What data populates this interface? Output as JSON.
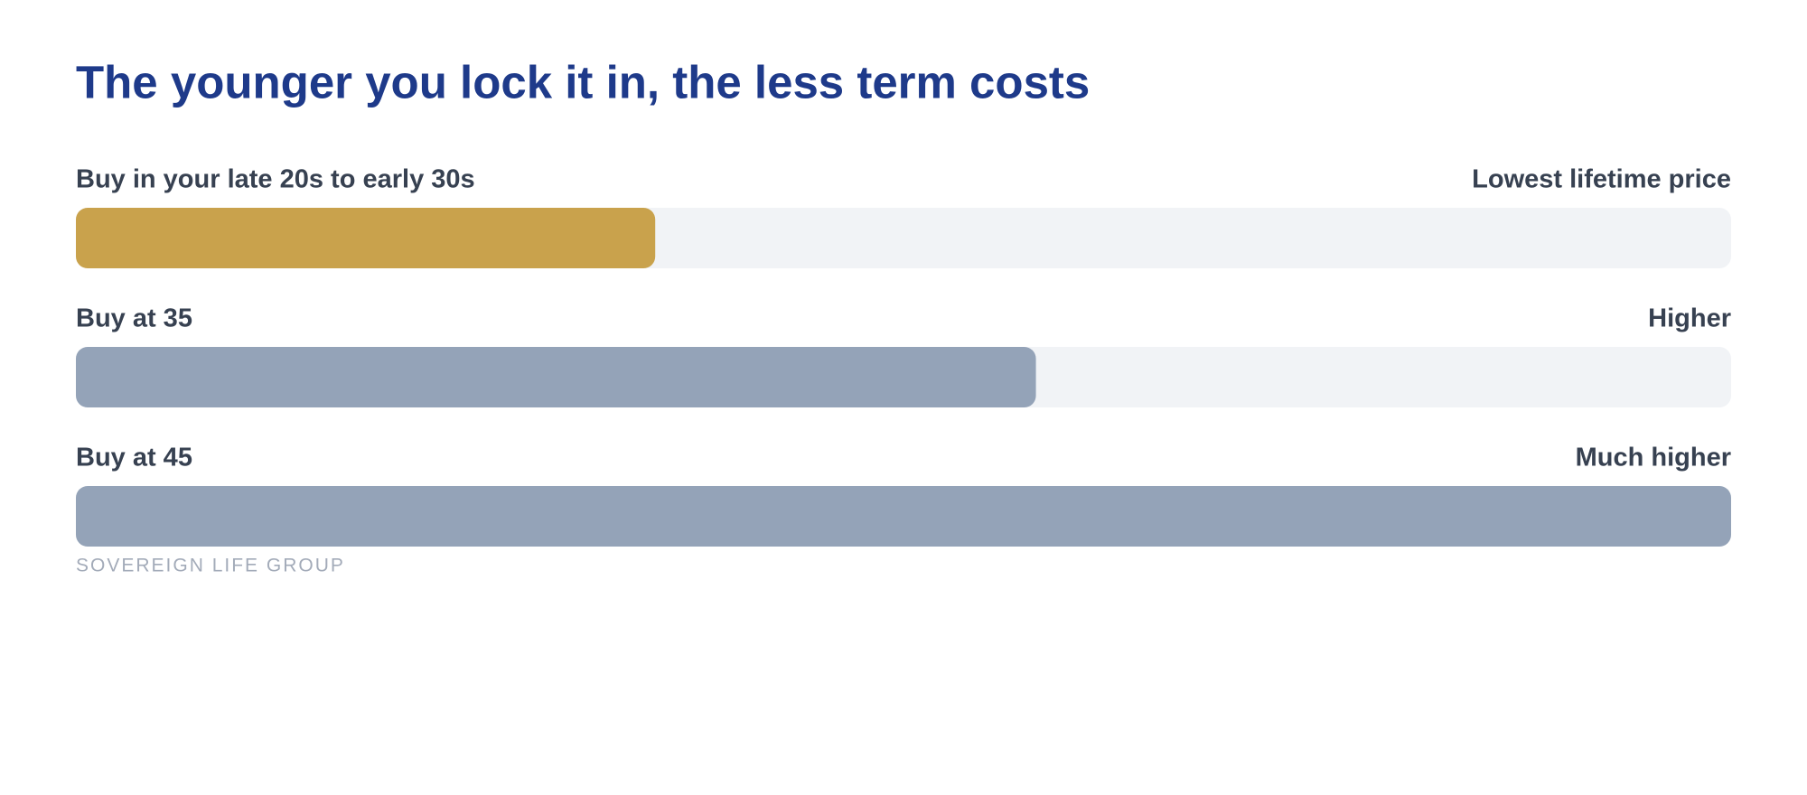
{
  "chart_data": {
    "type": "bar",
    "orientation": "horizontal",
    "title": "The younger you lock it in, the less term costs",
    "categories": [
      "Buy in your late 20s to early 30s",
      "Buy at 35",
      "Buy at 45"
    ],
    "descriptions": [
      "Lowest lifetime price",
      "Higher",
      "Much higher"
    ],
    "values": [
      35,
      58,
      100
    ],
    "colors": [
      "#c9a24c",
      "#94a3b8",
      "#94a3b8"
    ],
    "xlim": [
      0,
      100
    ],
    "source": "SOVEREIGN LIFE GROUP"
  }
}
